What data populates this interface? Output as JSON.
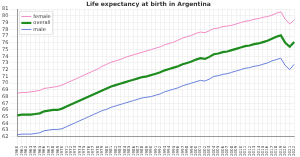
{
  "chart_data": {
    "type": "line",
    "title": "Life expectancy at birth in Argentina",
    "categories": [
      "1960",
      "1961",
      "1962",
      "1963",
      "1964",
      "1965",
      "1966",
      "1967",
      "1968",
      "1969",
      "1970",
      "1971",
      "1972",
      "1973",
      "1974",
      "1975",
      "1976",
      "1977",
      "1978",
      "1979",
      "1980",
      "1981",
      "1982",
      "1983",
      "1984",
      "1985",
      "1986",
      "1987",
      "1988",
      "1989",
      "1990",
      "1991",
      "1992",
      "1993",
      "1994",
      "1995",
      "1996",
      "1997",
      "1998",
      "1999",
      "2000",
      "2001",
      "2002",
      "2003",
      "2004",
      "2005",
      "2006",
      "2007",
      "2008",
      "2009",
      "2010",
      "2011",
      "2012",
      "2013",
      "2014",
      "2015",
      "2016",
      "2017",
      "2018",
      "2019",
      "2020",
      "2021",
      "2022"
    ],
    "series": [
      {
        "name": "female",
        "color": "#f28cc4",
        "values": [
          68.5,
          68.6,
          68.6,
          68.7,
          68.8,
          68.9,
          69.2,
          69.3,
          69.4,
          69.5,
          69.7,
          70.0,
          70.3,
          70.6,
          70.9,
          71.2,
          71.5,
          71.8,
          72.1,
          72.5,
          72.8,
          73.1,
          73.3,
          73.5,
          73.8,
          74.0,
          74.2,
          74.4,
          74.6,
          74.8,
          75.0,
          75.2,
          75.4,
          75.7,
          75.9,
          76.1,
          76.4,
          76.7,
          76.9,
          77.1,
          77.4,
          77.6,
          77.5,
          77.8,
          78.1,
          78.2,
          78.4,
          78.5,
          78.6,
          78.8,
          79.0,
          79.2,
          79.3,
          79.5,
          79.6,
          79.8,
          79.9,
          80.1,
          80.4,
          80.6,
          79.5,
          78.8,
          79.4
        ]
      },
      {
        "name": "overall",
        "color": "#1e8c1e",
        "values": [
          65.2,
          65.3,
          65.3,
          65.3,
          65.4,
          65.5,
          65.8,
          65.9,
          66.0,
          66.0,
          66.2,
          66.5,
          66.8,
          67.1,
          67.4,
          67.7,
          68.0,
          68.3,
          68.6,
          68.9,
          69.2,
          69.5,
          69.7,
          69.9,
          70.1,
          70.3,
          70.5,
          70.7,
          70.9,
          71.0,
          71.2,
          71.4,
          71.6,
          71.9,
          72.1,
          72.3,
          72.5,
          72.8,
          73.0,
          73.2,
          73.5,
          73.7,
          73.6,
          73.9,
          74.3,
          74.4,
          74.6,
          74.7,
          74.9,
          75.1,
          75.3,
          75.5,
          75.6,
          75.8,
          75.9,
          76.1,
          76.3,
          76.6,
          76.9,
          77.1,
          76.0,
          75.4,
          76.1
        ]
      },
      {
        "name": "male",
        "color": "#6a82dc",
        "values": [
          62.3,
          62.4,
          62.4,
          62.4,
          62.5,
          62.6,
          62.9,
          63.0,
          63.1,
          63.1,
          63.2,
          63.5,
          63.8,
          64.1,
          64.4,
          64.7,
          65.0,
          65.3,
          65.6,
          65.9,
          66.1,
          66.4,
          66.6,
          66.8,
          67.0,
          67.2,
          67.4,
          67.6,
          67.8,
          67.9,
          68.0,
          68.2,
          68.4,
          68.7,
          68.9,
          69.1,
          69.3,
          69.6,
          69.8,
          70.0,
          70.2,
          70.4,
          70.3,
          70.6,
          71.0,
          71.1,
          71.3,
          71.4,
          71.6,
          71.8,
          72.0,
          72.2,
          72.3,
          72.5,
          72.6,
          72.8,
          73.0,
          73.3,
          73.5,
          73.7,
          72.6,
          72.0,
          72.8
        ]
      }
    ],
    "ylim": [
      62,
      81
    ],
    "yticks": [
      62,
      63,
      64,
      65,
      66,
      67,
      68,
      69,
      70,
      71,
      72,
      73,
      74,
      75,
      76,
      77,
      78,
      79,
      80,
      81
    ],
    "grid": true,
    "legend": "upper left"
  }
}
